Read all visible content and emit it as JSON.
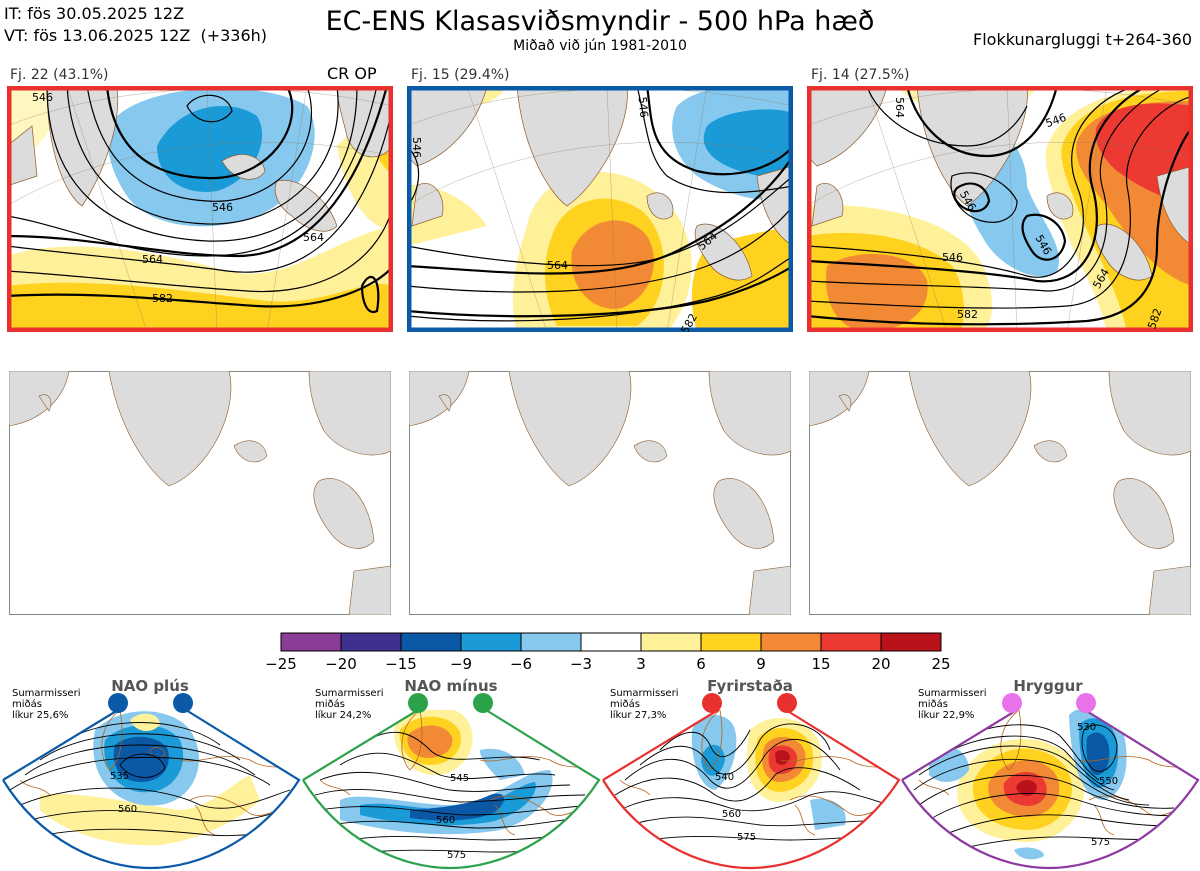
{
  "header": {
    "it_line": "IT: fös 30.05.2025 12Z",
    "vt_line": "VT: fös 13.06.2025 12Z  (+336h)",
    "title": "EC-ENS Klasasviðsmyndir - 500 hPa hæð",
    "subtitle": "Miðað við jún 1981-2010",
    "window": "Flokkunargluggi t+264-360"
  },
  "clusters": [
    {
      "label": "Fj. 22 (43.1%)",
      "marker": "CR OP",
      "border_color": "#e8312f",
      "contour_labels": [
        "546",
        "564",
        "582",
        "546",
        "564"
      ]
    },
    {
      "label": "Fj. 15 (29.4%)",
      "marker": "",
      "border_color": "#0a5aa8",
      "contour_labels": [
        "564",
        "546",
        "564",
        "582",
        "546"
      ]
    },
    {
      "label": "Fj. 14 (27.5%)",
      "marker": "",
      "border_color": "#e8312f",
      "contour_labels": [
        "546",
        "546",
        "564",
        "582",
        "564",
        "546",
        "582",
        "546"
      ]
    }
  ],
  "colorbar": {
    "ticks": [
      "−25",
      "−20",
      "−15",
      "−9",
      "−6",
      "−3",
      "3",
      "6",
      "9",
      "15",
      "20",
      "25"
    ],
    "colors": [
      "#8a3d97",
      "#3f2f8f",
      "#0b58a6",
      "#1a9ad6",
      "#86c8ee",
      "#ffffff",
      "#fff199",
      "#ffd21f",
      "#f28a35",
      "#ec3a33",
      "#b9121b"
    ]
  },
  "regimes": [
    {
      "name": "NAO plús",
      "note": [
        "Sumarmisseri",
        "miðás",
        "líkur 25,6%"
      ],
      "frame_color": "#0a5aa8",
      "dot_color": "#0a5aa8",
      "contour_labels": [
        "535",
        "560"
      ]
    },
    {
      "name": "NAO mínus",
      "note": [
        "Sumarmisseri",
        "miðás",
        "líkur 24,2%"
      ],
      "frame_color": "#2ca24a",
      "dot_color": "#2ca24a",
      "contour_labels": [
        "545",
        "560",
        "575"
      ]
    },
    {
      "name": "Fyrirstaða",
      "note": [
        "Sumarmisseri",
        "miðás",
        "líkur 27,3%"
      ],
      "frame_color": "#e8312f",
      "dot_color": "#e8312f",
      "contour_labels": [
        "540",
        "560",
        "575"
      ]
    },
    {
      "name": "Hryggur",
      "note": [
        "Sumarmisseri",
        "miðás",
        "líkur 22,9%"
      ],
      "frame_color": "#8e3aa0",
      "dot_color": "#e971e9",
      "contour_labels": [
        "530",
        "550",
        "575"
      ]
    }
  ]
}
